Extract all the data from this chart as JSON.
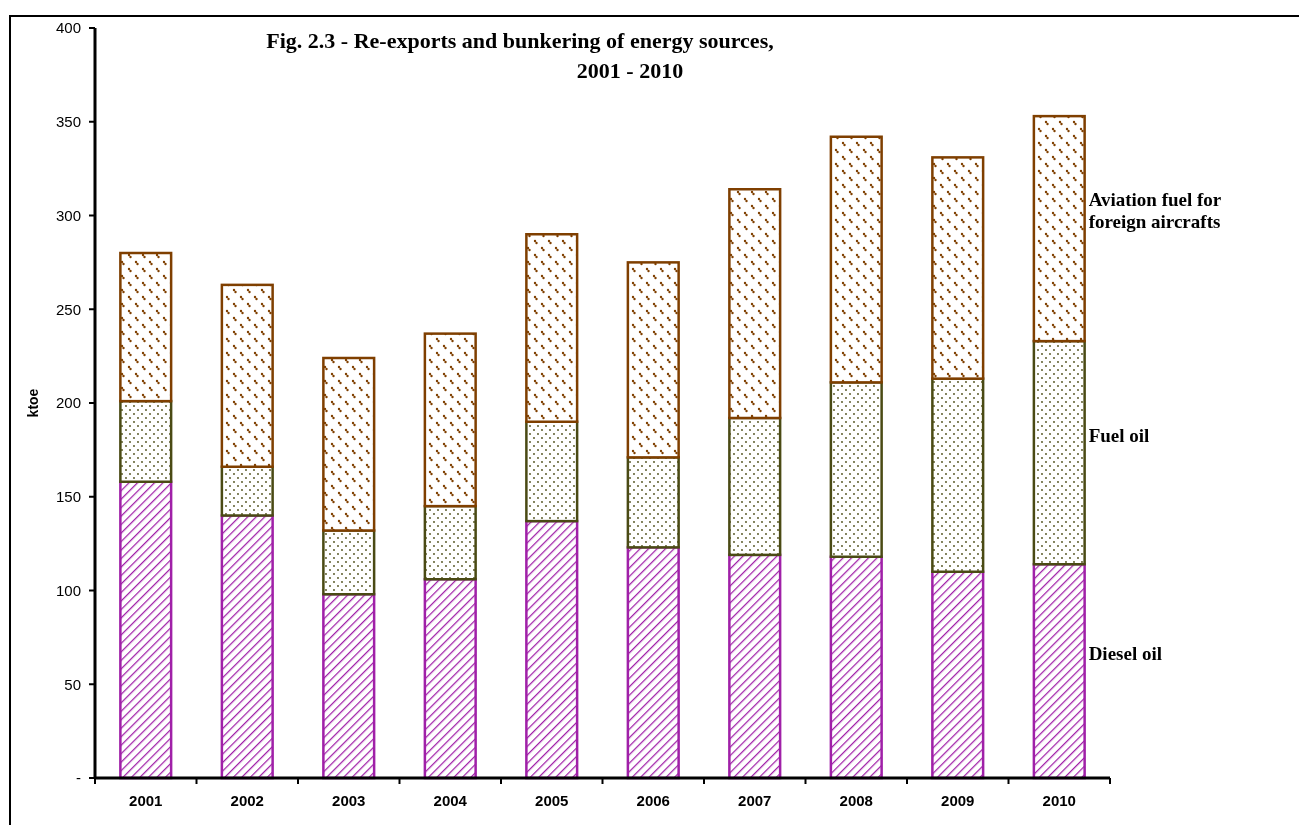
{
  "chart_data": {
    "type": "bar",
    "stacked": true,
    "title": "Fig. 2.3 - Re-exports and bunkering of energy sources, 2001 - 2010",
    "ylabel": "ktoe",
    "categories": [
      "2001",
      "2002",
      "2003",
      "2004",
      "2005",
      "2006",
      "2007",
      "2008",
      "2009",
      "2010"
    ],
    "series": [
      {
        "name": "Diesel oil",
        "color": "#a020a8",
        "values": [
          158,
          140,
          98,
          106,
          137,
          123,
          119,
          118,
          110,
          114
        ]
      },
      {
        "name": "Fuel oil",
        "color": "#4a4a14",
        "values": [
          43,
          26,
          34,
          39,
          53,
          48,
          73,
          93,
          103,
          119
        ]
      },
      {
        "name": "Aviation fuel for foreign aircrafts",
        "color": "#7f3f00",
        "values": [
          79,
          97,
          92,
          92,
          100,
          104,
          122,
          131,
          118,
          120
        ]
      }
    ],
    "ylim": [
      0,
      400
    ],
    "yticks": [
      {
        "value": 0,
        "label": "-"
      },
      50,
      100,
      150,
      200,
      250,
      300,
      350,
      400
    ],
    "grid": false,
    "legend": "right"
  }
}
